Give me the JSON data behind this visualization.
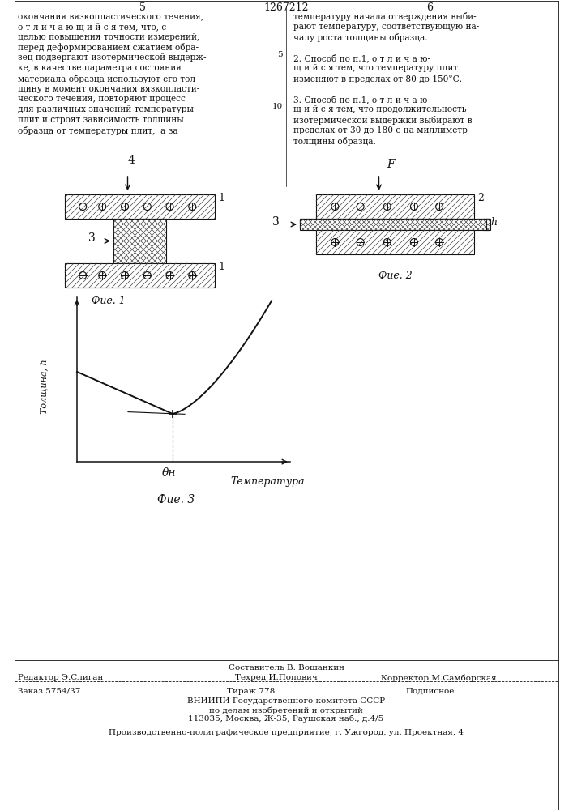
{
  "page_title": "1267212",
  "page_num_left": "5",
  "page_num_right": "6",
  "left_col_lines": [
    "окончания вязкопластического течения,",
    "о т л и ч а ю щ и й с я тем, что, с",
    "целью повышения точности измерений,",
    "перед деформированием сжатием обра-",
    "зец подвергают изотермической выдерж-",
    "ке, в качестве параметра состояния",
    "материала образца используют его тол-",
    "щину в момент окончания вязкопласти-",
    "ческого течения, повторяют процесс",
    "для различных значений температуры",
    "плит и строят зависимость толщины",
    "образца от температуры плит,  а за"
  ],
  "right_col_lines": [
    "температуру начала отверждения выби-",
    "рают температуру, соответствующую на-",
    "чалу роста толщины образца.",
    "",
    "2. Способ по п.1, о т л и ч а ю-",
    "щ и й с я тем, что температуру плит",
    "изменяют в пределах от 80 до 150°С.",
    "",
    "3. Способ по п.1, о т л и ч а ю-",
    "щ и й с я тем, что продолжительность",
    "изотермической выдержки выбирают в",
    "пределах от 30 до 180 с на миллиметр",
    "толщины образца."
  ],
  "line_num_5": "5",
  "line_num_10": "10",
  "fig1_label": "Фие. 1",
  "fig2_label": "Фие. 2",
  "fig3_label": "Фие. 3",
  "fig1_ylabel": "Толщина, h",
  "fig1_xlabel": "Температура",
  "fig1_theta": "θн",
  "editor": "Редактор Э.Слиган",
  "composer": "Составитель В. Вошанкин",
  "techred": "Техред И.Попович",
  "corrector": "Корректор М.Самборская",
  "order": "Заказ 5754/37",
  "tirazh": "Тираж 778",
  "podpisnoe": "Подписное",
  "vnipi1": "ВНИИПИ Государственного комитета СССР",
  "vnipi2": "по делам изобретений и открытий",
  "vnipi3": "113035, Москва, Ж-35, Раушская наб., д.4/5",
  "production": "Производственно-полиграфическое предприятие, г. Ужгород, ул. Проектная, 4",
  "bg_color": "#ffffff",
  "text_color": "#111111",
  "line_color": "#111111",
  "hatch_color": "#444444"
}
